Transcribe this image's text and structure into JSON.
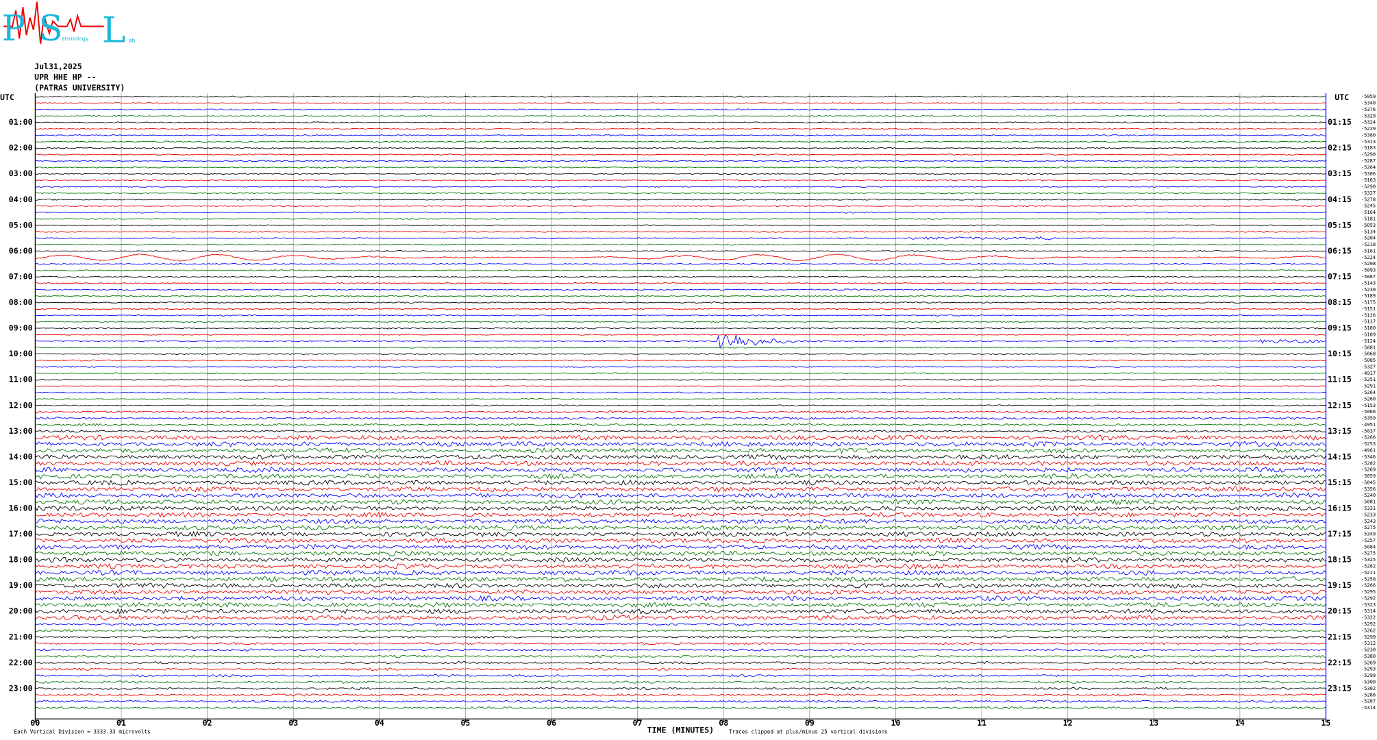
{
  "logo": {
    "letters": [
      "P",
      "S",
      "L"
    ],
    "subtext": [
      "eismology",
      "ab"
    ]
  },
  "header": {
    "date": "Jul31,2025",
    "station": "UPR HHE HP --",
    "institution": "(PATRAS UNIVERSITY)"
  },
  "left_axis": {
    "title": "UTC",
    "labels": [
      "01:00",
      "02:00",
      "03:00",
      "04:00",
      "05:00",
      "06:00",
      "07:00",
      "08:00",
      "09:00",
      "10:00",
      "11:00",
      "12:00",
      "13:00",
      "14:00",
      "15:00",
      "16:00",
      "17:00",
      "18:00",
      "19:00",
      "20:00",
      "21:00",
      "22:00",
      "23:00"
    ]
  },
  "right_axis": {
    "title": "UTC",
    "labels": [
      "01:15",
      "02:15",
      "03:15",
      "04:15",
      "05:15",
      "06:15",
      "07:15",
      "08:15",
      "09:15",
      "10:15",
      "11:15",
      "12:15",
      "13:15",
      "14:15",
      "15:15",
      "16:15",
      "17:15",
      "18:15",
      "19:15",
      "20:15",
      "21:15",
      "22:15",
      "23:15"
    ]
  },
  "trace_offsets": [
    "-5059",
    "-5340",
    "-5376",
    "-5329",
    "-5324",
    "-5229",
    "-5380",
    "-5313",
    "-5183",
    "-5290",
    "-5287",
    "-5264",
    "-5306",
    "-5163",
    "-5290",
    "-5327",
    "-5278",
    "-5245",
    "-5164",
    "-5181",
    "-5053",
    "-5134",
    "-5204",
    "-5218",
    "-5161",
    "-5224",
    "-5208",
    "-5093",
    "-5087",
    "-5143",
    "-5230",
    "-5189",
    "-5175",
    "-5151",
    "-5126",
    "-5117",
    "-5180",
    "-5189",
    "-5124",
    "-5081",
    "-5068",
    "-5085",
    "-5327",
    "-4917",
    "-5251",
    "-5291",
    "-5264",
    "-5260",
    "-5153",
    "-5066",
    "-5359",
    "-4951",
    "-5037",
    "-5266",
    "-5253",
    "-4961",
    "-5346",
    "-5282",
    "-5269",
    "-5059",
    "-5045",
    "-5356",
    "-5240",
    "-5081",
    "-5331",
    "-5233",
    "-5243",
    "-5275",
    "-5349",
    "-5257",
    "-5084",
    "-5275",
    "-5325",
    "-5282",
    "-5211",
    "-5250",
    "-5266",
    "-5295",
    "-5292",
    "-5323",
    "-5314",
    "-5322",
    "-5292",
    "-5262",
    "-5290",
    "-5312",
    "-5230",
    "-5380",
    "-5269",
    "-5293",
    "-5299",
    "-5300",
    "-5302",
    "-5286",
    "-5287",
    "-5314"
  ],
  "x_axis": {
    "labels": [
      "00",
      "01",
      "02",
      "03",
      "04",
      "05",
      "06",
      "07",
      "08",
      "09",
      "10",
      "11",
      "12",
      "13",
      "14",
      "15"
    ],
    "title": "TIME (MINUTES)"
  },
  "footer": {
    "scale_note": "Each Vertical Division = 3333.33 microvolts",
    "clip_note": "Traces clipped at plus/minus 25 vertical divisions"
  }
}
